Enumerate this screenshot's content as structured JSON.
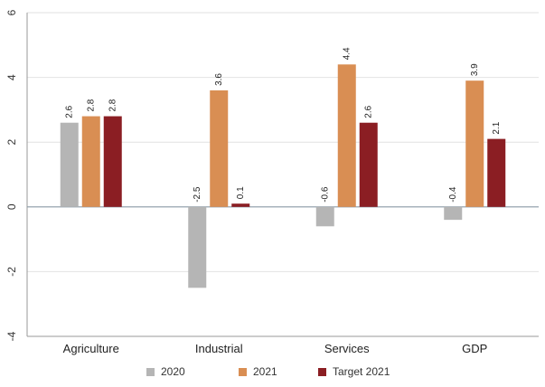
{
  "chart_data": {
    "type": "bar",
    "title": "",
    "xlabel": "",
    "ylabel": "",
    "categories": [
      "Agriculture",
      "Industrial",
      "Services",
      "GDP"
    ],
    "series": [
      {
        "name": "2020",
        "color": "#b5b5b5",
        "values": [
          2.6,
          -2.5,
          -0.6,
          -0.4
        ],
        "labels": [
          "2.6",
          "-2.5",
          "-0.6",
          "-0.4"
        ]
      },
      {
        "name": "2021",
        "color": "#d98e53",
        "values": [
          2.8,
          3.6,
          4.4,
          3.9
        ],
        "labels": [
          "2.8",
          "3.6",
          "4.4",
          "3.9"
        ]
      },
      {
        "name": "Target 2021",
        "color": "#8b1e23",
        "values": [
          2.8,
          0.1,
          2.6,
          2.1
        ],
        "labels": [
          "2.8",
          "0.1",
          "2.6",
          "2.1"
        ]
      }
    ],
    "ylim": [
      -4,
      6
    ],
    "yticks": [
      -4,
      -2,
      0,
      2,
      4,
      6
    ],
    "grid": true,
    "legend_position": "bottom"
  }
}
